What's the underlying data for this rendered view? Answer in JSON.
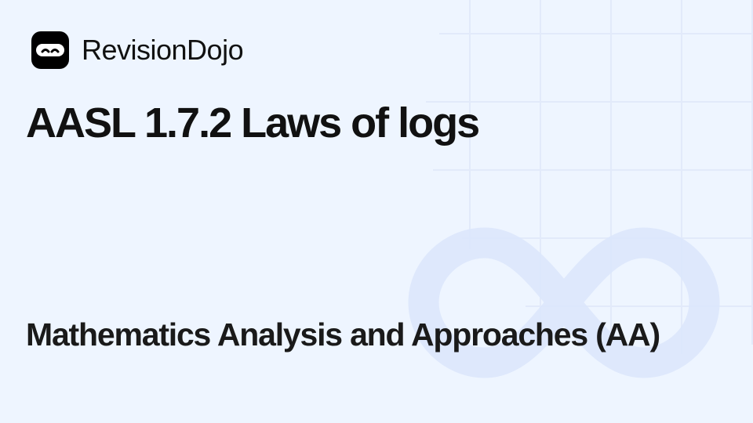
{
  "brand": {
    "name": "RevisionDojo",
    "logo_icon": "ninja-mask-icon"
  },
  "title": "AASL 1.7.2 Laws of logs",
  "subtitle": "Mathematics Analysis and Approaches (AA)",
  "decoration": {
    "icon": "infinity-icon"
  },
  "colors": {
    "background": "#eef5ff",
    "grid": "#e2eafa",
    "infinity": "#dbe7fc",
    "text": "#111111"
  }
}
